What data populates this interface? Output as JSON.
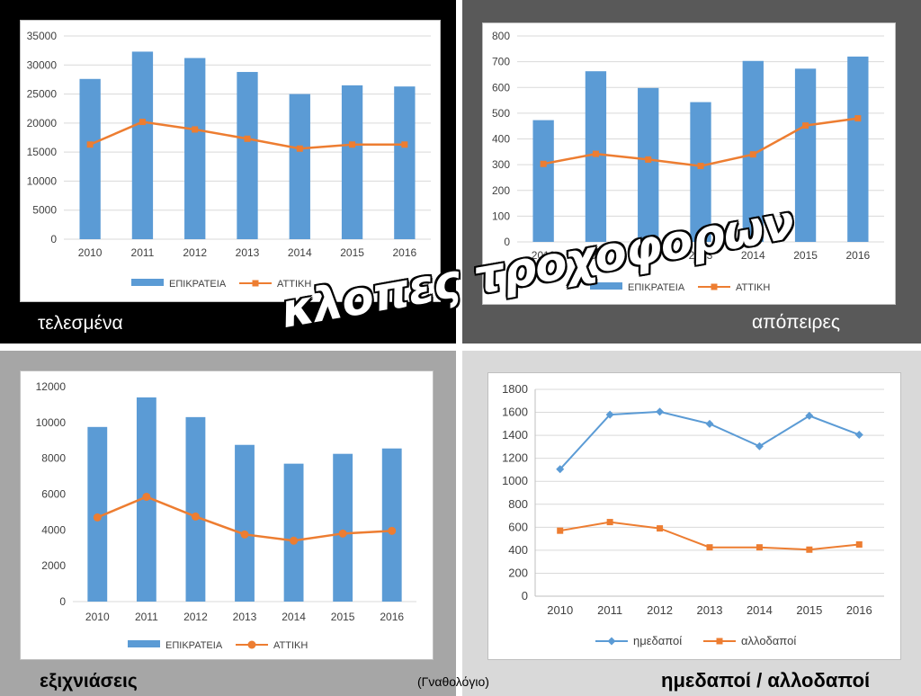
{
  "title": "κλοπες τροχοφορων",
  "credit": "(Γναθολόγιο)",
  "captions": {
    "q1": "τελεσμένα",
    "q2": "απόπειρες",
    "q3": "εξιχνιάσεις",
    "q4": "ημεδαποί / αλλοδαποί"
  },
  "colors": {
    "blue": "#5b9bd5",
    "orange": "#ed7d31"
  },
  "chart_data": [
    {
      "id": "telesmena",
      "type": "bar",
      "categories": [
        "2010",
        "2011",
        "2012",
        "2013",
        "2014",
        "2015",
        "2016"
      ],
      "series": [
        {
          "name": "ΕΠΙΚΡΑΤΕΙΑ",
          "kind": "bar",
          "color": "#5b9bd5",
          "values": [
            27600,
            32300,
            31200,
            28800,
            25000,
            26500,
            26300
          ]
        },
        {
          "name": "ΑΤΤΙΚΗ",
          "kind": "line",
          "marker": "square",
          "color": "#ed7d31",
          "values": [
            16300,
            20200,
            18900,
            17300,
            15600,
            16300,
            16300
          ]
        }
      ],
      "ylim": [
        0,
        35000
      ],
      "yticks": [
        "0",
        "5000",
        "10000",
        "15000",
        "20000",
        "25000",
        "30000",
        "35000"
      ],
      "grid": true,
      "legend": "bottom"
    },
    {
      "id": "apopeires",
      "type": "bar",
      "categories": [
        "2010",
        "2011",
        "2012",
        "2013",
        "2014",
        "2015",
        "2016"
      ],
      "series": [
        {
          "name": "ΕΠΙΚΡΑΤΕΙΑ",
          "kind": "bar",
          "color": "#5b9bd5",
          "values": [
            473,
            663,
            598,
            543,
            703,
            673,
            720
          ]
        },
        {
          "name": "ΑΤΤΙΚΗ",
          "kind": "line",
          "marker": "square",
          "color": "#ed7d31",
          "values": [
            303,
            342,
            320,
            295,
            340,
            452,
            480
          ]
        }
      ],
      "ylim": [
        0,
        800
      ],
      "yticks": [
        "0",
        "100",
        "200",
        "300",
        "400",
        "500",
        "600",
        "700",
        "800"
      ],
      "grid": true,
      "legend": "bottom"
    },
    {
      "id": "exichniaseis",
      "type": "bar",
      "categories": [
        "2010",
        "2011",
        "2012",
        "2013",
        "2014",
        "2015",
        "2016"
      ],
      "series": [
        {
          "name": "ΕΠΙΚΡΑΤΕΙΑ",
          "kind": "bar",
          "color": "#5b9bd5",
          "values": [
            9750,
            11400,
            10300,
            8750,
            7700,
            8250,
            8550
          ]
        },
        {
          "name": "ΑΤΤΙΚΗ",
          "kind": "line",
          "marker": "circle",
          "color": "#ed7d31",
          "values": [
            4700,
            5850,
            4750,
            3750,
            3400,
            3800,
            3950
          ]
        }
      ],
      "ylim": [
        0,
        12000
      ],
      "yticks": [
        "0",
        "2000",
        "4000",
        "6000",
        "8000",
        "10000",
        "12000"
      ],
      "grid": false,
      "legend": "bottom"
    },
    {
      "id": "imedapoi-allodapoi",
      "type": "line",
      "categories": [
        "2010",
        "2011",
        "2012",
        "2013",
        "2014",
        "2015",
        "2016"
      ],
      "series": [
        {
          "name": "ημεδαποί",
          "kind": "line",
          "marker": "diamond",
          "color": "#5b9bd5",
          "values": [
            1105,
            1580,
            1605,
            1500,
            1305,
            1570,
            1405
          ]
        },
        {
          "name": "αλλοδαποί",
          "kind": "line",
          "marker": "square",
          "color": "#ed7d31",
          "values": [
            570,
            645,
            590,
            425,
            425,
            405,
            450
          ]
        }
      ],
      "ylim": [
        0,
        1800
      ],
      "yticks": [
        "0",
        "200",
        "400",
        "600",
        "800",
        "1000",
        "1200",
        "1400",
        "1600",
        "1800"
      ],
      "grid": true,
      "legend": "bottom"
    }
  ]
}
